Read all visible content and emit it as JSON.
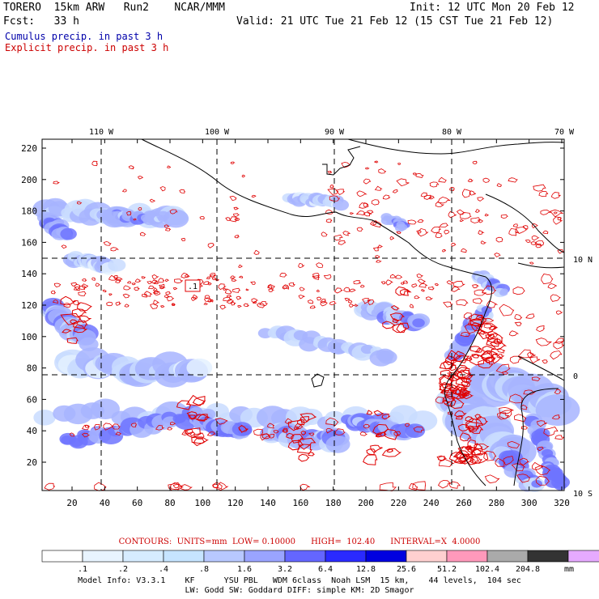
{
  "header": {
    "model": "TORERO  15km ARW   Run2    NCAR/MMM",
    "init": "Init: 12 UTC Mon 20 Feb 12",
    "fcst": "Fcst:   33 h",
    "valid": "Valid: 21 UTC Tue 21 Feb 12 (15 CST Tue 21 Feb 12)"
  },
  "legend": {
    "cumulus": "Cumulus precip. in past 3 h",
    "explicit": "Explicit precip. in past 3 h"
  },
  "colors": {
    "cumulus_text": "#0000aa",
    "explicit_text": "#cc0000",
    "contour": "#e00000",
    "coast": "#000000"
  },
  "map": {
    "top_lon_labels": [
      "110 W",
      "100 W",
      "90 W",
      "80 W",
      "70 W"
    ],
    "right_lat_labels": [
      "10 N",
      "0",
      "10 S"
    ],
    "x_ticks": [
      "20",
      "40",
      "60",
      "80",
      "100",
      "120",
      "140",
      "160",
      "180",
      "200",
      "220",
      "240",
      "260",
      "280",
      "300",
      "320"
    ],
    "y_ticks": [
      "20",
      "40",
      "60",
      "80",
      "100",
      "120",
      "140",
      "160",
      "180",
      "200",
      "220"
    ],
    "marker": ".1"
  },
  "colorbar": {
    "contours_line": "CONTOURS:  UNITS=mm  LOW= 0.10000      HIGH=  102.40      INTERVAL=X  4.0000",
    "labels": [
      ".1",
      ".2",
      ".4",
      ".8",
      "1.6",
      "3.2",
      "6.4",
      "12.8",
      "25.6",
      "51.2",
      "102.4",
      "204.8"
    ],
    "units": "mm",
    "colors": [
      "#ffffff",
      "#e8f4ff",
      "#d6ecff",
      "#c6e4ff",
      "#b8c8ff",
      "#9aa4ff",
      "#6466ff",
      "#2a2aff",
      "#0000e0",
      "#ffd0d0",
      "#ff99bb",
      "#aaaaaa",
      "#333333",
      "#e6aaff"
    ]
  },
  "model_info": {
    "line1": "Model Info: V3.3.1    KF      YSU PBL   WDM 6class  Noah LSM  15 km,    44 levels,  104 sec",
    "line2": "LW: Godd SW: Goddard DIFF: simple KM: 2D Smagor"
  }
}
